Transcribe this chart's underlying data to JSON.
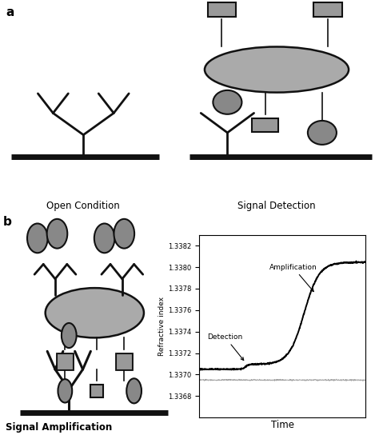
{
  "fig_width": 4.74,
  "fig_height": 5.44,
  "dpi": 100,
  "label_a": "a",
  "label_b": "b",
  "open_condition_label": "Open Condition",
  "signal_detection_label": "Signal Detection",
  "signal_amplification_label": "Signal Amplification",
  "ylabel": "Refractive index",
  "xlabel": "Time",
  "yticks": [
    1.3368,
    1.337,
    1.3372,
    1.3374,
    1.3376,
    1.3378,
    1.338,
    1.3382
  ],
  "ytick_labels": [
    "1.3368",
    "1.3370",
    "1.3372",
    "1.3374",
    "1.3376",
    "1.3378",
    "1.3380",
    "1.3382"
  ],
  "amplification_label": "Amplification",
  "detection_label": "Detection",
  "surface_color": "#111111",
  "analyte_color": "#aaaaaa",
  "dark_analyte_color": "#888888",
  "square_color": "#999999",
  "aptamer_color": "#111111",
  "background": "#ffffff"
}
